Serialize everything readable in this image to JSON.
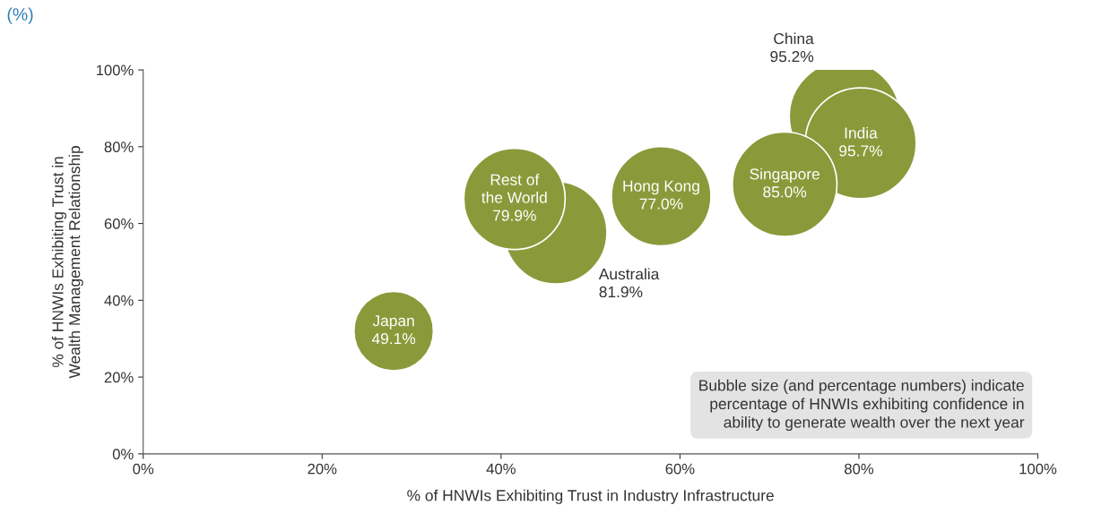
{
  "chart_data": {
    "type": "bubble",
    "title": "(%)",
    "xlabel": "% of HNWIs Exhibiting Trust in Industry Infrastructure",
    "ylabel": "% of HNWIs Exhibiting Trust in\nWealth Management Relationship",
    "xlim": [
      0,
      100
    ],
    "ylim": [
      0,
      100
    ],
    "xticks": [
      {
        "value": 0,
        "label": "0%"
      },
      {
        "value": 20,
        "label": "20%"
      },
      {
        "value": 40,
        "label": "40%"
      },
      {
        "value": 60,
        "label": "60%"
      },
      {
        "value": 80,
        "label": "80%"
      },
      {
        "value": 100,
        "label": "100%"
      }
    ],
    "yticks": [
      {
        "value": 0,
        "label": "0%"
      },
      {
        "value": 20,
        "label": "20%"
      },
      {
        "value": 40,
        "label": "40%"
      },
      {
        "value": 60,
        "label": "60%"
      },
      {
        "value": 80,
        "label": "80%"
      },
      {
        "value": 100,
        "label": "100%"
      }
    ],
    "grid": false,
    "legend": false,
    "series": [
      {
        "name": "Japan",
        "color": "#8a9a3a",
        "x": [
          28
        ],
        "values": [
          32
        ],
        "sizes": [
          49.1
        ],
        "value_labels": [
          "49.1%"
        ]
      },
      {
        "name": "Australia",
        "color": "#8a9a3a",
        "x": [
          46.1
        ],
        "values": [
          57.6
        ],
        "sizes": [
          81.9
        ],
        "value_labels": [
          "81.9%"
        ]
      },
      {
        "name": "Rest of\nthe World",
        "color": "#8a9a3a",
        "x": [
          41.5
        ],
        "values": [
          66.4
        ],
        "sizes": [
          79.9
        ],
        "value_labels": [
          "79.9%"
        ]
      },
      {
        "name": "Hong Kong",
        "color": "#8a9a3a",
        "x": [
          57.9
        ],
        "values": [
          67.1
        ],
        "sizes": [
          77.0
        ],
        "value_labels": [
          "77.0%"
        ]
      },
      {
        "name": "China",
        "color": "#8a9a3a",
        "x": [
          78.4
        ],
        "values": [
          87.9
        ],
        "sizes": [
          95.2
        ],
        "value_labels": [
          "95.2%"
        ]
      },
      {
        "name": "India",
        "color": "#8a9a3a",
        "x": [
          80.2
        ],
        "values": [
          80.9
        ],
        "sizes": [
          95.7
        ],
        "value_labels": [
          "95.7%"
        ]
      },
      {
        "name": "Singapore",
        "color": "#8a9a3a",
        "x": [
          71.7
        ],
        "values": [
          70.2
        ],
        "sizes": [
          85.0
        ],
        "value_labels": [
          "85.0%"
        ]
      }
    ],
    "annotations": [
      "Bubble size (and percentage numbers) indicate\npercentage of HNWIs exhibiting confidence in\nability to generate wealth over the next year"
    ]
  }
}
